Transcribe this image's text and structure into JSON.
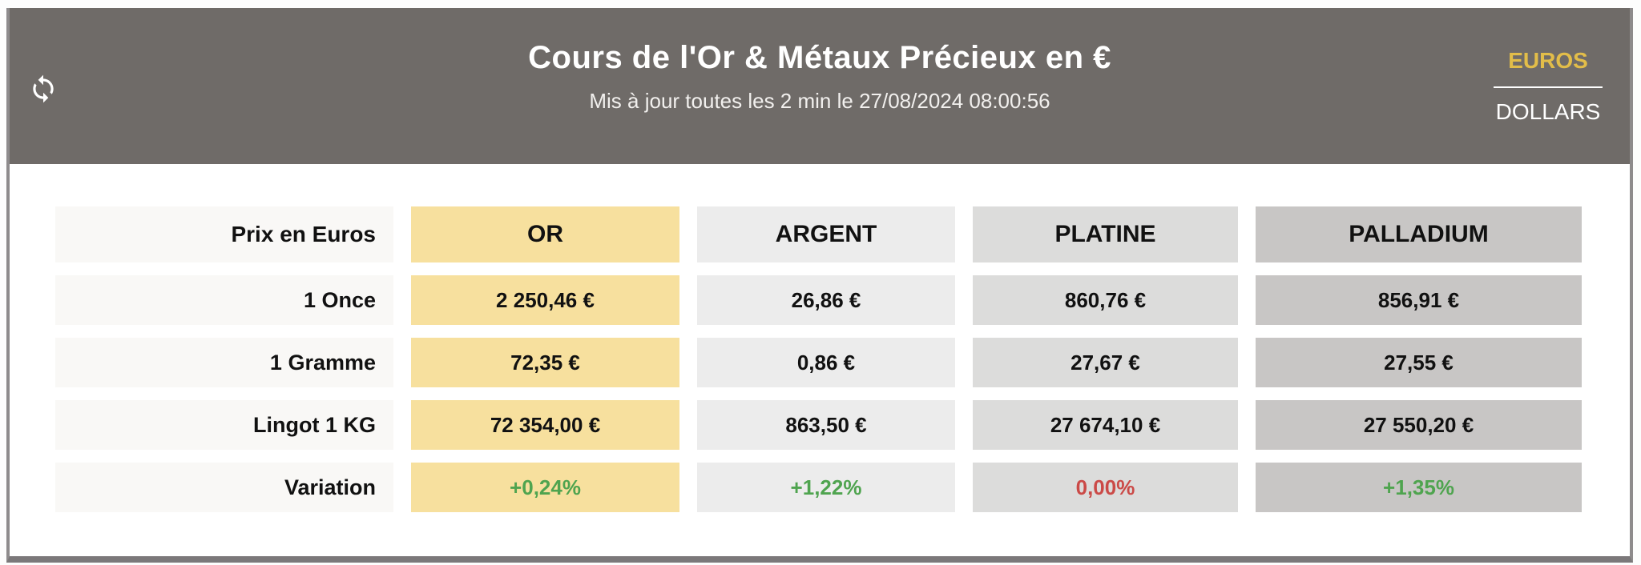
{
  "header": {
    "title": "Cours de l'Or & Métaux Précieux en €",
    "subtitle": "Mis à jour toutes les 2 min le 27/08/2024 08:00:56",
    "refresh_icon": "refresh-icon",
    "currency_toggle": {
      "euros_label": "EUROS",
      "dollars_label": "DOLLARS",
      "selected": "EUROS",
      "selected_color": "#e2bd49"
    },
    "background_color": "#6f6b68"
  },
  "table": {
    "corner_label": "Prix en Euros",
    "columns": [
      {
        "label": "OR",
        "bg": "#f7e09e"
      },
      {
        "label": "ARGENT",
        "bg": "#ececec"
      },
      {
        "label": "PLATINE",
        "bg": "#dcdcdb"
      },
      {
        "label": "PALLADIUM",
        "bg": "#c8c6c5"
      }
    ],
    "rows": [
      {
        "label": "1 Once",
        "values": [
          "2 250,46 €",
          "26,86 €",
          "860,76 €",
          "856,91 €"
        ]
      },
      {
        "label": "1 Gramme",
        "values": [
          "72,35 €",
          "0,86 €",
          "27,67 €",
          "27,55 €"
        ]
      },
      {
        "label": "Lingot 1 KG",
        "values": [
          "72 354,00 €",
          "863,50 €",
          "27 674,10 €",
          "27 550,20 €"
        ]
      },
      {
        "label": "Variation",
        "values": [
          "+0,24%",
          "+1,22%",
          "0,00%",
          "+1,35%"
        ],
        "value_colors": [
          "#4fa44f",
          "#4fa44f",
          "#cb4a47",
          "#4fa44f"
        ]
      }
    ],
    "label_bg": "#f9f8f6"
  },
  "colors": {
    "positive": "#4fa44f",
    "negative": "#cb4a47",
    "accent_gold": "#e2bd49",
    "card_border": "#8e8b8c",
    "card_border_bottom": "#7b787a"
  }
}
